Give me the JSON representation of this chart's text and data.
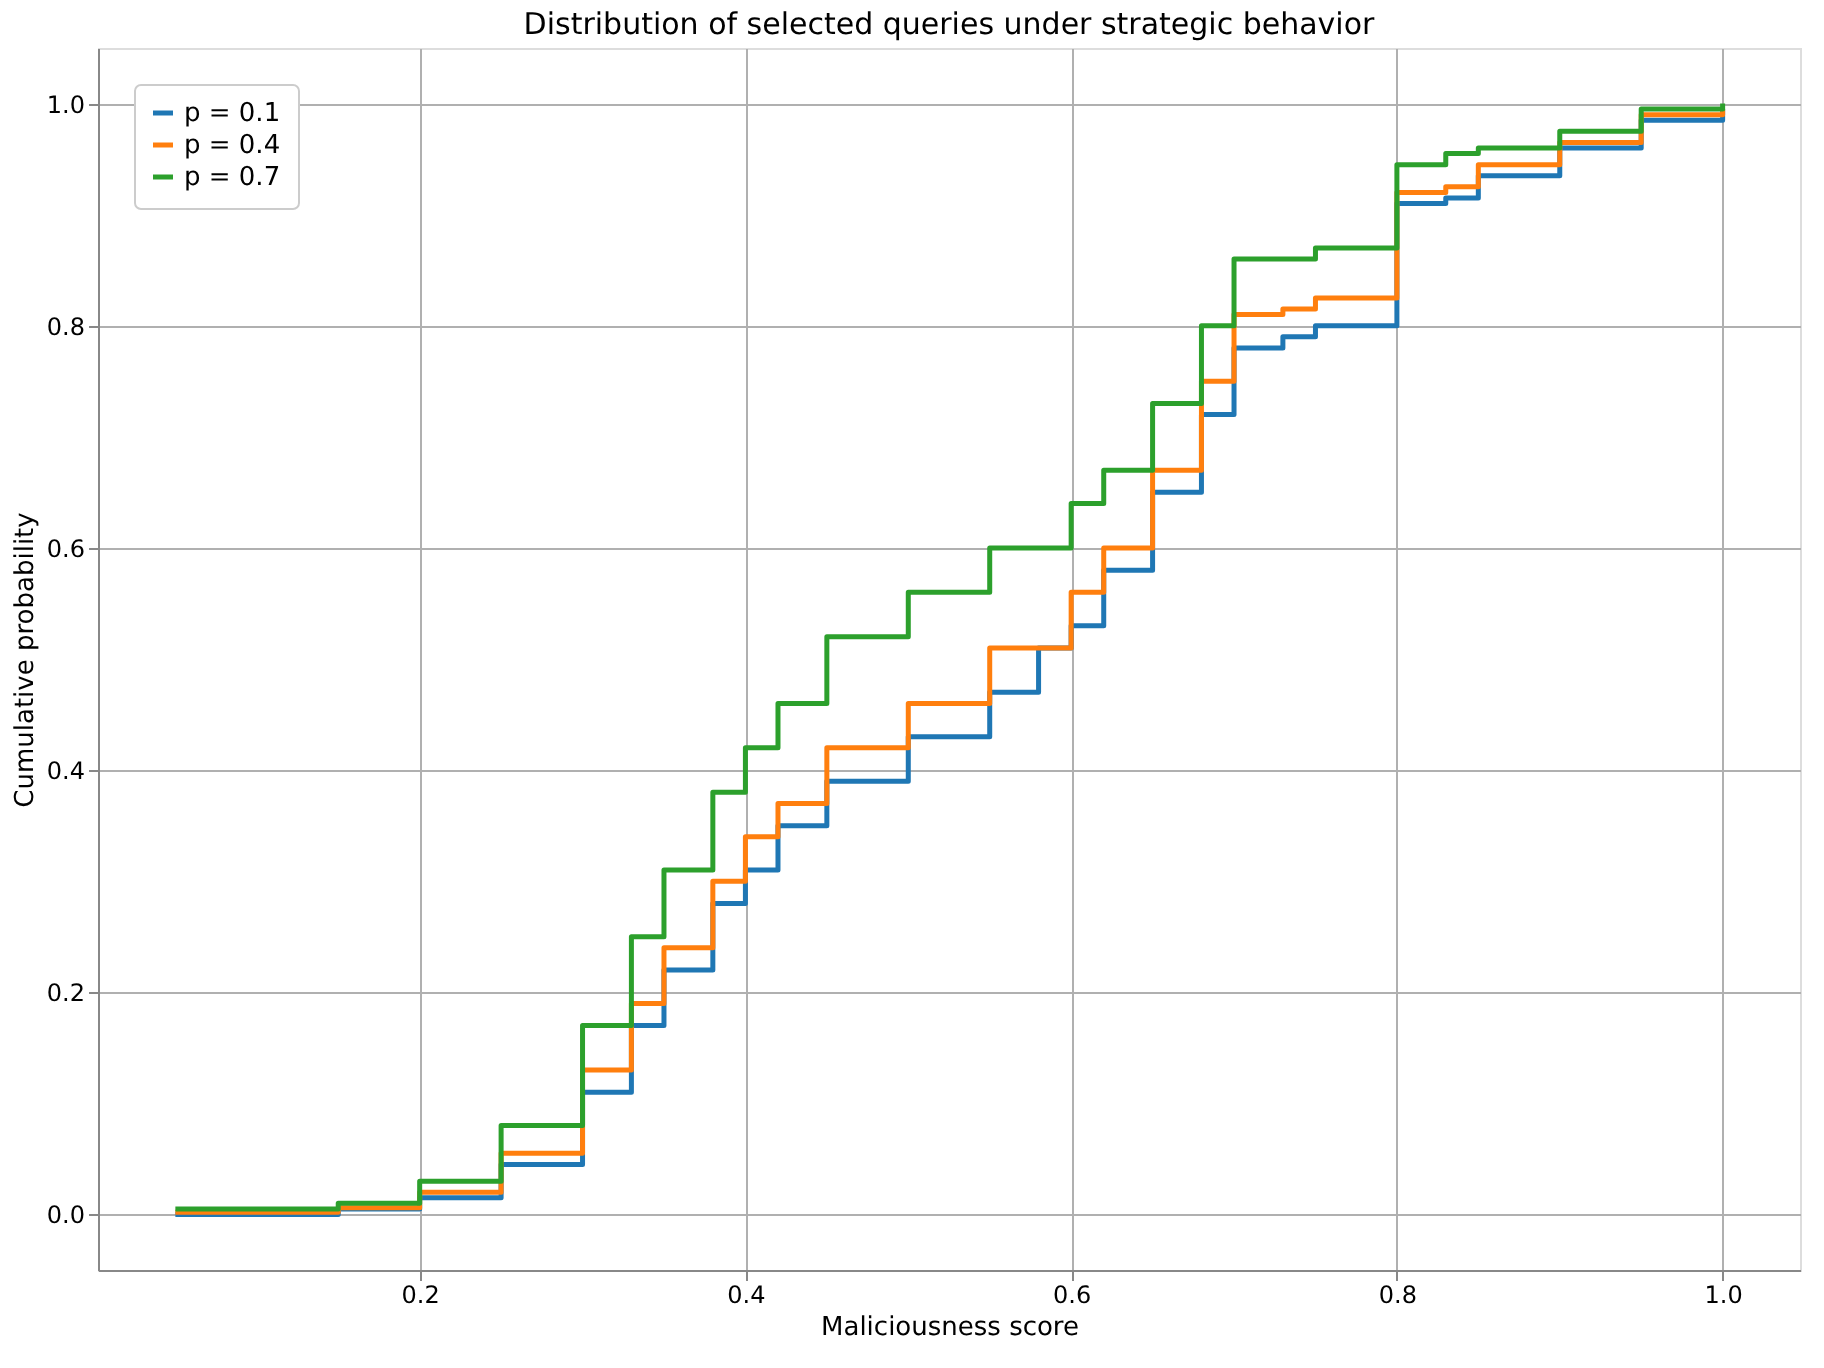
{
  "chart_data": {
    "type": "step",
    "title": "Distribution of selected queries under strategic behavior",
    "xlabel": "Maliciousness score",
    "ylabel": "Cumulative probability",
    "xlim": [
      0.0025,
      1.0475
    ],
    "xticks": [
      {
        "value": 0.2,
        "label": "0.2"
      },
      {
        "value": 0.4,
        "label": "0.4"
      },
      {
        "value": 0.6,
        "label": "0.6"
      },
      {
        "value": 0.8,
        "label": "0.8"
      },
      {
        "value": 1,
        "label": "1.0"
      }
    ],
    "ylim": [
      -0.05,
      1.05
    ],
    "yticks": [
      {
        "value": 0,
        "label": "0.0"
      },
      {
        "value": 0.2,
        "label": "0.2"
      },
      {
        "value": 0.4,
        "label": "0.4"
      },
      {
        "value": 0.6,
        "label": "0.6"
      },
      {
        "value": 0.8,
        "label": "0.8"
      },
      {
        "value": 1,
        "label": "1.0"
      }
    ],
    "grid": true,
    "legend": "top left",
    "line_style": "solid",
    "series": [
      {
        "name": "p = 0.1",
        "color": "#1f77b4",
        "x": [
          0.05,
          0.15,
          0.2,
          0.25,
          0.3,
          0.33,
          0.35,
          0.38,
          0.4,
          0.42,
          0.45,
          0.5,
          0.55,
          0.58,
          0.6,
          0.62,
          0.65,
          0.68,
          0.7,
          0.73,
          0.75,
          0.8,
          0.8,
          0.83,
          0.85,
          0.9,
          0.95,
          1.0
        ],
        "values": [
          0.0,
          0.005,
          0.015,
          0.045,
          0.11,
          0.17,
          0.22,
          0.28,
          0.31,
          0.35,
          0.39,
          0.43,
          0.47,
          0.51,
          0.53,
          0.58,
          0.65,
          0.72,
          0.78,
          0.79,
          0.8,
          0.82,
          0.91,
          0.915,
          0.935,
          0.96,
          0.985,
          0.995
        ]
      },
      {
        "name": "p = 0.4",
        "color": "#ff7f0e",
        "x": [
          0.05,
          0.15,
          0.2,
          0.25,
          0.3,
          0.33,
          0.35,
          0.38,
          0.4,
          0.42,
          0.45,
          0.5,
          0.55,
          0.6,
          0.62,
          0.65,
          0.68,
          0.7,
          0.73,
          0.75,
          0.8,
          0.8,
          0.83,
          0.85,
          0.9,
          0.95,
          1.0
        ],
        "values": [
          0.002,
          0.006,
          0.02,
          0.055,
          0.13,
          0.19,
          0.24,
          0.3,
          0.34,
          0.37,
          0.42,
          0.46,
          0.51,
          0.56,
          0.6,
          0.67,
          0.75,
          0.81,
          0.815,
          0.825,
          0.835,
          0.92,
          0.925,
          0.945,
          0.965,
          0.99,
          0.995
        ]
      },
      {
        "name": "p = 0.7",
        "color": "#2ca02c",
        "x": [
          0.05,
          0.15,
          0.2,
          0.25,
          0.3,
          0.33,
          0.35,
          0.38,
          0.4,
          0.42,
          0.45,
          0.5,
          0.55,
          0.6,
          0.62,
          0.65,
          0.68,
          0.7,
          0.75,
          0.8,
          0.8,
          0.83,
          0.85,
          0.9,
          0.95,
          1.0
        ],
        "values": [
          0.005,
          0.01,
          0.03,
          0.08,
          0.17,
          0.25,
          0.31,
          0.38,
          0.42,
          0.46,
          0.52,
          0.56,
          0.6,
          0.64,
          0.67,
          0.73,
          0.8,
          0.86,
          0.87,
          0.88,
          0.945,
          0.955,
          0.96,
          0.975,
          0.995,
          1.0
        ]
      }
    ]
  }
}
